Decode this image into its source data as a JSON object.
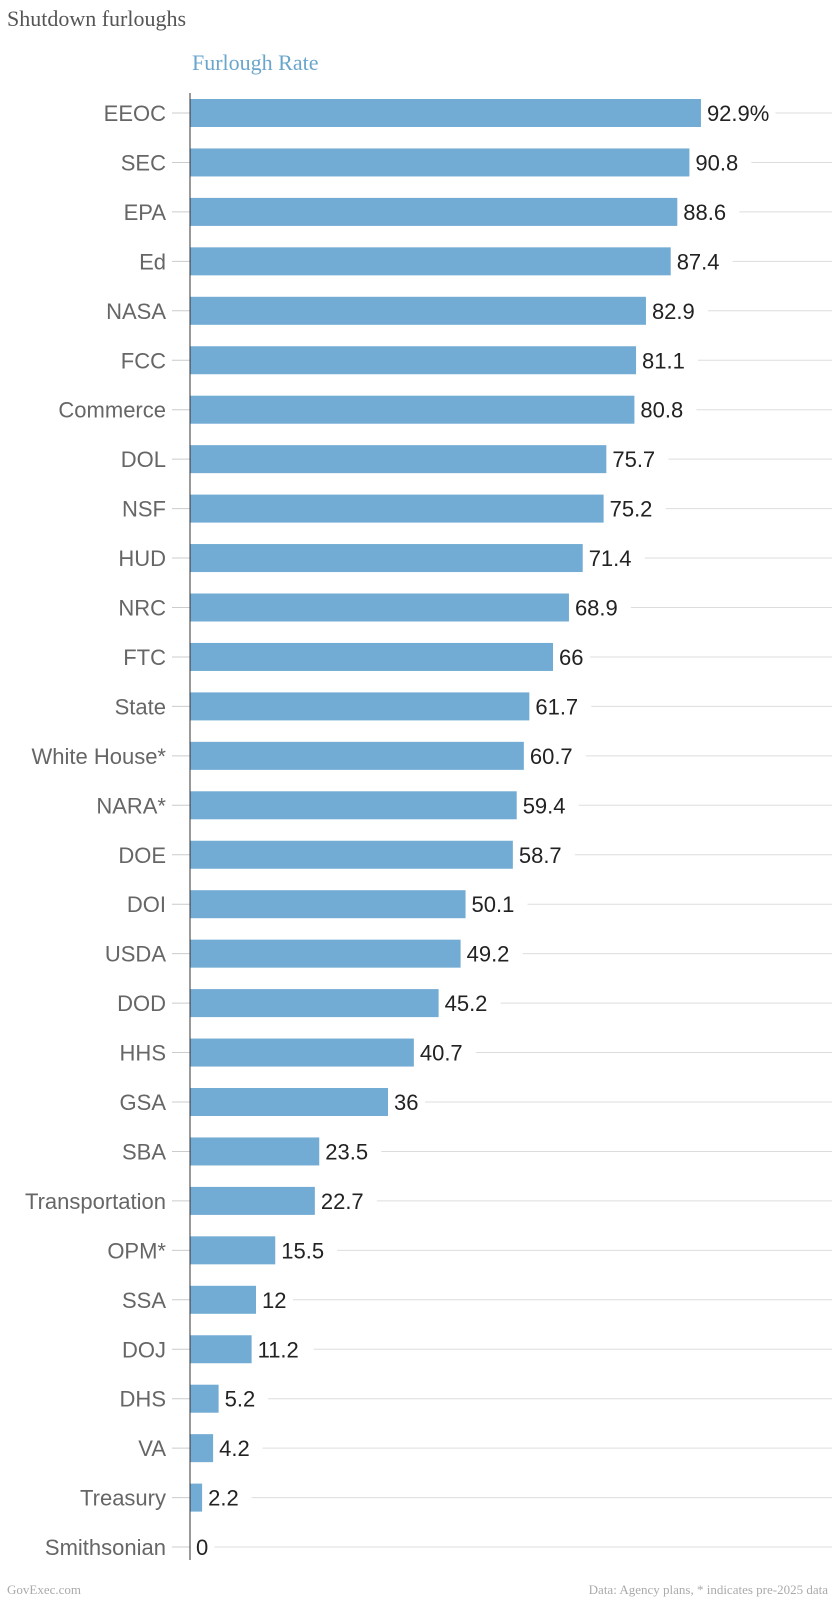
{
  "title": "Shutdown furloughs",
  "chart_data": {
    "type": "bar",
    "orientation": "horizontal",
    "series_name": "Furlough Rate",
    "unit_suffix": "%",
    "categories": [
      "EEOC",
      "SEC",
      "EPA",
      "Ed",
      "NASA",
      "FCC",
      "Commerce",
      "DOL",
      "NSF",
      "HUD",
      "NRC",
      "FTC",
      "State",
      "White House*",
      "NARA*",
      "DOE",
      "DOI",
      "USDA",
      "DOD",
      "HHS",
      "GSA",
      "SBA",
      "Transportation",
      "OPM*",
      "SSA",
      "DOJ",
      "DHS",
      "VA",
      "Treasury",
      "Smithsonian"
    ],
    "values": [
      92.9,
      90.8,
      88.6,
      87.4,
      82.9,
      81.1,
      80.8,
      75.7,
      75.2,
      71.4,
      68.9,
      66,
      61.7,
      60.7,
      59.4,
      58.7,
      50.1,
      49.2,
      45.2,
      40.7,
      36,
      23.5,
      22.7,
      15.5,
      12,
      11.2,
      5.2,
      4.2,
      2.2,
      0
    ],
    "value_labels": [
      "92.9%",
      "90.8",
      "88.6",
      "87.4",
      "82.9",
      "81.1",
      "80.8",
      "75.7",
      "75.2",
      "71.4",
      "68.9",
      "66",
      "61.7",
      "60.7",
      "59.4",
      "58.7",
      "50.1",
      "49.2",
      "45.2",
      "40.7",
      "36",
      "23.5",
      "22.7",
      "15.5",
      "12",
      "11.2",
      "5.2",
      "4.2",
      "2.2",
      "0"
    ],
    "xlim": [
      0,
      100
    ],
    "grid": true,
    "bar_color": "#72abd3",
    "series_title_color": "#6aa6cc"
  },
  "footer": {
    "source": "GovExec.com",
    "note": "Data: Agency plans, * indicates pre-2025 data"
  }
}
